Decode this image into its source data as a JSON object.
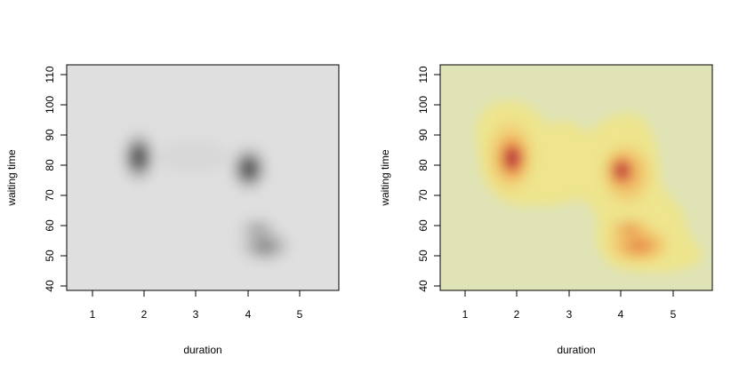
{
  "chart_data": [
    {
      "type": "heatmap",
      "name": "left",
      "xlabel": "duration",
      "ylabel": "waiting time",
      "xlim": [
        0.5,
        5.8
      ],
      "ylim": [
        38,
        113
      ],
      "xticks": [
        1,
        2,
        3,
        4,
        5
      ],
      "yticks": [
        40,
        50,
        60,
        70,
        80,
        90,
        100,
        110
      ],
      "palette": "greys",
      "background": "#dfdfdf",
      "peak_color": "#1e1e1e",
      "density_modes": [
        {
          "x": 1.9,
          "y": 82,
          "relative_density": 1.0
        },
        {
          "x": 4.0,
          "y": 78,
          "relative_density": 0.85
        },
        {
          "x": 4.5,
          "y": 52,
          "relative_density": 0.55
        },
        {
          "x": 4.2,
          "y": 57,
          "relative_density": 0.4
        }
      ]
    },
    {
      "type": "heatmap",
      "name": "right",
      "xlabel": "duration",
      "ylabel": "waiting time",
      "xlim": [
        0.5,
        5.8
      ],
      "ylim": [
        38,
        113
      ],
      "xticks": [
        1,
        2,
        3,
        4,
        5
      ],
      "yticks": [
        40,
        50,
        60,
        70,
        80,
        90,
        100,
        110
      ],
      "palette": "yellow-orange-red",
      "background": "#dfe3b6",
      "low_color": "#f0e58a",
      "mid_color": "#f2b45a",
      "high_color": "#e06a3a",
      "peak_color": "#8a0e3e",
      "density_modes": [
        {
          "x": 1.9,
          "y": 82,
          "relative_density": 1.0
        },
        {
          "x": 4.0,
          "y": 78,
          "relative_density": 0.85
        },
        {
          "x": 4.5,
          "y": 52,
          "relative_density": 0.55
        },
        {
          "x": 4.2,
          "y": 57,
          "relative_density": 0.4
        }
      ]
    }
  ]
}
